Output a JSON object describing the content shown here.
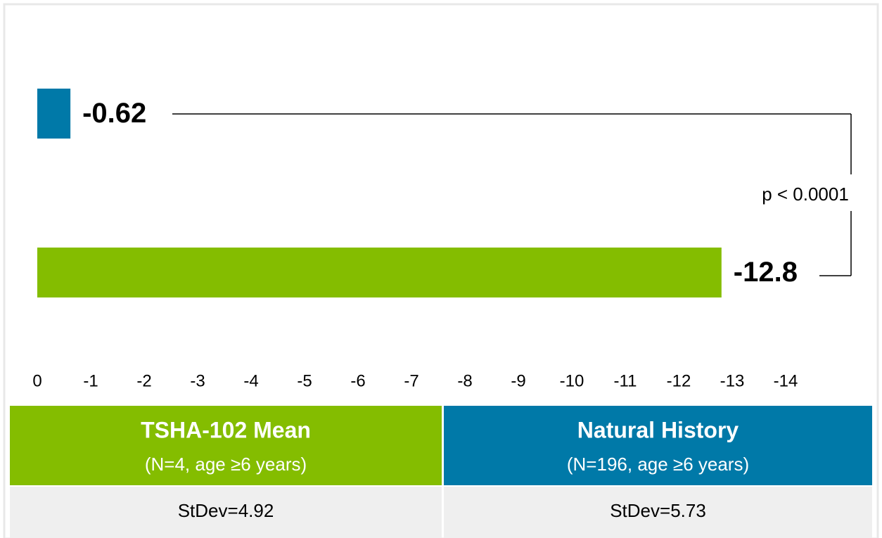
{
  "chart_data": {
    "type": "bar",
    "orientation": "horizontal",
    "categories": [
      null,
      null
    ],
    "values": [
      -0.62,
      -12.8
    ],
    "colors": [
      "#0079a8",
      "#84bd00"
    ],
    "xlim": [
      0,
      -14
    ],
    "xticks": [
      0,
      -1,
      -2,
      -3,
      -4,
      -5,
      -6,
      -7,
      -8,
      -9,
      -10,
      -11,
      -12,
      -13,
      -14
    ],
    "annotation": "p < 0.0001"
  },
  "table": {
    "columns": [
      {
        "title": "TSHA-102 Mean",
        "subtitle": "(N=4, age ≥6 years)",
        "stdev": "StDev=4.92",
        "color": "#84bd00"
      },
      {
        "title": "Natural History",
        "subtitle": "(N=196, age ≥6 years)",
        "stdev": "StDev=5.73",
        "color": "#0079a8"
      }
    ]
  }
}
